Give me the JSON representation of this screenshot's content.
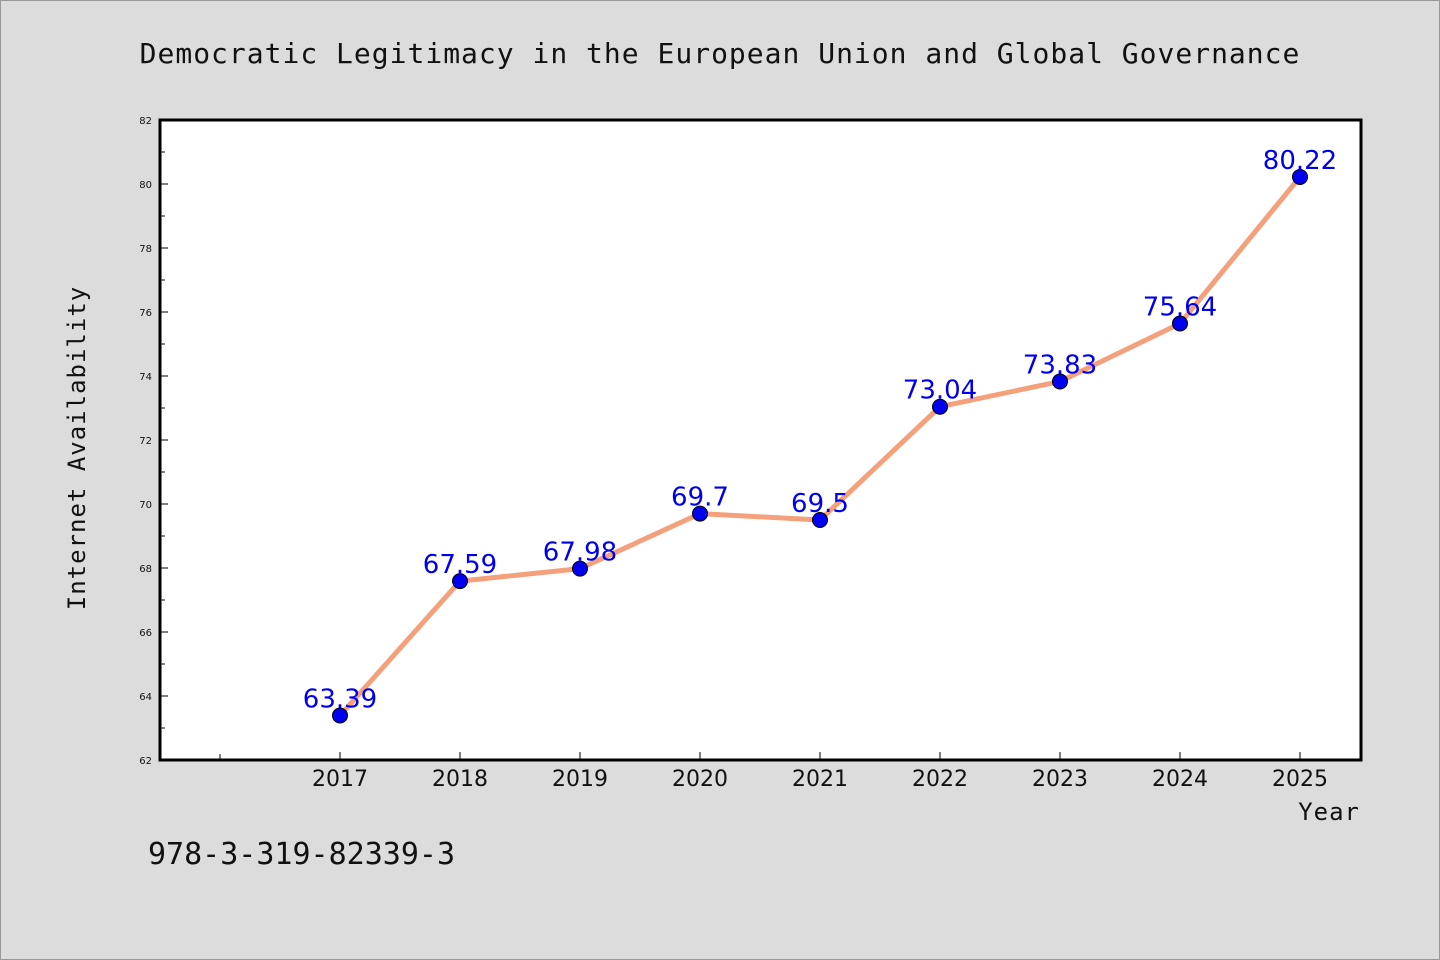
{
  "chart_data": {
    "type": "line",
    "title": "Democratic Legitimacy in the European Union and Global Governance",
    "xlabel": "Year",
    "ylabel": "Internet Availability",
    "categories": [
      "2017",
      "2018",
      "2019",
      "2020",
      "2021",
      "2022",
      "2023",
      "2024",
      "2025"
    ],
    "series": [
      {
        "values": [
          63.39,
          67.59,
          67.98,
          69.7,
          69.5,
          73.04,
          73.83,
          75.64,
          80.22
        ],
        "labels": [
          "63.39",
          "67.59",
          "67.98",
          "69.7",
          "69.5",
          "73.04",
          "73.83",
          "75.64",
          "80.22"
        ],
        "line_color": "#f4a07a",
        "marker_color": "#0000ee"
      }
    ],
    "ylim": [
      62,
      82
    ],
    "yticks": [
      "62",
      "64",
      "66",
      "68",
      "70",
      "72",
      "74",
      "76",
      "78",
      "80",
      "82"
    ],
    "grid": false,
    "legend": "none",
    "plot_background": "#ffffff",
    "figure_background": "#dcdcdc"
  },
  "footer": {
    "isbn": "978-3-319-82339-3"
  }
}
